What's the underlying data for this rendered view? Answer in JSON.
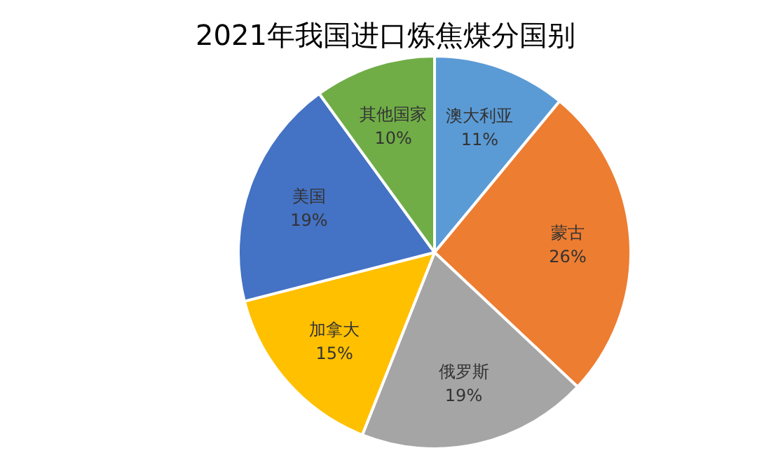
{
  "chart_data": {
    "type": "pie",
    "title": "2021年我国进口炼焦煤分国别",
    "categories": [
      "澳大利亚",
      "蒙古",
      "俄罗斯",
      "加拿大",
      "美国",
      "其他国家"
    ],
    "values": [
      11,
      26,
      19,
      15,
      19,
      10
    ],
    "colors": [
      "#5b9bd5",
      "#ed7d31",
      "#a5a5a5",
      "#ffc000",
      "#4472c4",
      "#70ad47"
    ],
    "value_labels": [
      "11%",
      "26%",
      "19%",
      "15%",
      "19%",
      "10%"
    ]
  }
}
